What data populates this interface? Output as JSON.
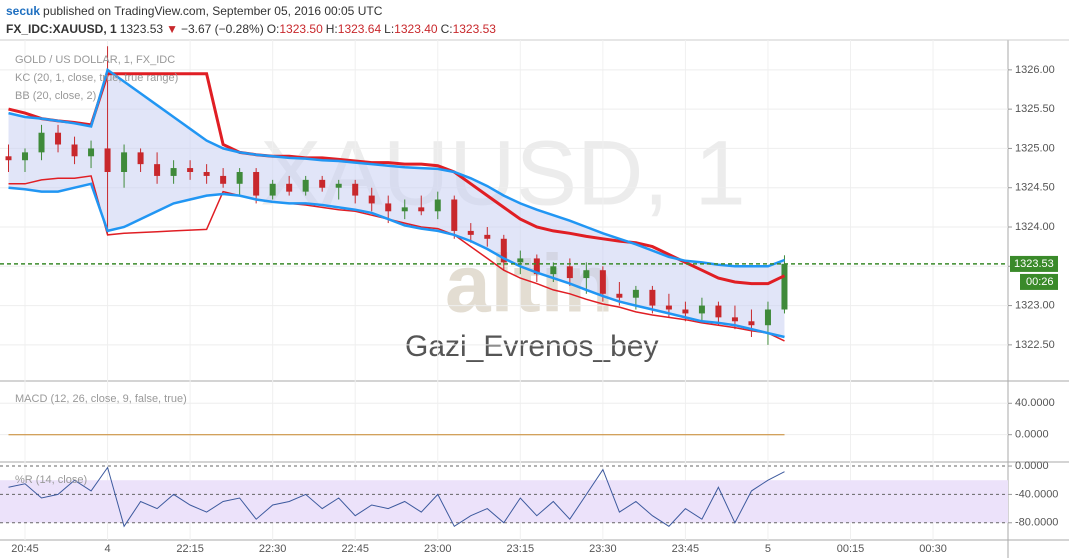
{
  "header": {
    "author": "secuk",
    "published": "published on TradingView.com, September 05, 2016 00:05 UTC",
    "symbol": "FX_IDC:XAUUSD, 1",
    "price": "1323.53",
    "arrow": "▼",
    "change": "−3.67 (−0.28%)",
    "open_label": "O:",
    "open": "1323.50",
    "high_label": "H:",
    "high": "1323.64",
    "low_label": "L:",
    "low": "1323.40",
    "close_label": "C:",
    "close": "1323.53"
  },
  "watermark": {
    "symbol": "XAUUSD, 1",
    "logo": "altin",
    "author": "Gazi_Evrenos_bey"
  },
  "chart_data": [
    {
      "type": "candlestick",
      "title": "GOLD / US DOLLAR, 1, FX_IDC",
      "categories": [
        null,
        "20:45",
        null,
        null,
        null,
        null,
        "4",
        null,
        null,
        null,
        null,
        "22:15",
        null,
        null,
        null,
        null,
        "22:30",
        null,
        null,
        null,
        null,
        "22:45",
        null,
        null,
        null,
        null,
        "23:00",
        null,
        null,
        null,
        null,
        "23:15",
        null,
        null,
        null,
        null,
        "23:30",
        null,
        null,
        null,
        null,
        "23:45",
        null,
        null,
        null,
        null,
        "5",
        null,
        null,
        null,
        null,
        "00:15",
        null,
        null,
        null,
        null,
        "00:30",
        null,
        null,
        null,
        null
      ],
      "open": [
        1324.9,
        1324.85,
        1324.95,
        1325.2,
        1325.05,
        1324.9,
        1325.0,
        1324.7,
        1324.95,
        1324.8,
        1324.65,
        1324.75,
        1324.7,
        1324.65,
        1324.55,
        1324.7,
        1324.4,
        1324.55,
        1324.45,
        1324.6,
        1324.5,
        1324.55,
        1324.4,
        1324.3,
        1324.2,
        1324.25,
        1324.2,
        1324.35,
        1323.95,
        1323.9,
        1323.85,
        1323.55,
        1323.6,
        1323.4,
        1323.5,
        1323.35,
        1323.45,
        1323.15,
        1323.1,
        1323.2,
        1323.0,
        1322.95,
        1322.9,
        1323.0,
        1322.85,
        1322.8,
        1322.75,
        1322.95,
        null,
        null,
        null,
        null,
        null,
        null,
        null,
        null,
        null,
        null,
        null,
        null,
        null
      ],
      "high": [
        1325.05,
        1325.0,
        1325.3,
        1325.3,
        1325.15,
        1325.1,
        1326.3,
        1325.05,
        1325.0,
        1324.95,
        1324.85,
        1324.85,
        1324.8,
        1324.75,
        1324.75,
        1324.75,
        1324.6,
        1324.65,
        1324.65,
        1324.65,
        1324.6,
        1324.6,
        1324.5,
        1324.4,
        1324.35,
        1324.4,
        1324.45,
        1324.4,
        1324.05,
        1324.0,
        1323.9,
        1323.7,
        1323.65,
        1323.55,
        1323.6,
        1323.55,
        1323.5,
        1323.3,
        1323.25,
        1323.25,
        1323.15,
        1323.05,
        1323.1,
        1323.05,
        1323.0,
        1322.95,
        1323.05,
        1323.64,
        null,
        null,
        null,
        null,
        null,
        null,
        null,
        null,
        null,
        null,
        null,
        null,
        null
      ],
      "low": [
        1324.7,
        1324.7,
        1324.85,
        1324.95,
        1324.8,
        1324.75,
        1323.9,
        1324.5,
        1324.7,
        1324.55,
        1324.55,
        1324.6,
        1324.55,
        1324.5,
        1324.4,
        1324.3,
        1324.35,
        1324.4,
        1324.4,
        1324.45,
        1324.35,
        1324.3,
        1324.2,
        1324.05,
        1324.1,
        1324.15,
        1324.1,
        1323.85,
        1323.8,
        1323.75,
        1323.45,
        1323.4,
        1323.3,
        1323.3,
        1323.25,
        1323.15,
        1323.05,
        1323.0,
        1322.95,
        1322.9,
        1322.85,
        1322.8,
        1322.8,
        1322.75,
        1322.7,
        1322.6,
        1322.5,
        1322.9,
        null,
        null,
        null,
        null,
        null,
        null,
        null,
        null,
        null,
        null,
        null,
        null,
        null
      ],
      "close": [
        1324.85,
        1324.95,
        1325.2,
        1325.05,
        1324.9,
        1325.0,
        1324.7,
        1324.95,
        1324.8,
        1324.65,
        1324.75,
        1324.7,
        1324.65,
        1324.55,
        1324.7,
        1324.4,
        1324.55,
        1324.45,
        1324.6,
        1324.5,
        1324.55,
        1324.4,
        1324.3,
        1324.2,
        1324.25,
        1324.2,
        1324.35,
        1323.95,
        1323.9,
        1323.85,
        1323.55,
        1323.6,
        1323.4,
        1323.5,
        1323.35,
        1323.45,
        1323.15,
        1323.1,
        1323.2,
        1323.0,
        1322.95,
        1322.9,
        1323.0,
        1322.85,
        1322.8,
        1322.75,
        1322.95,
        1323.53,
        null,
        null,
        null,
        null,
        null,
        null,
        null,
        null,
        null,
        null,
        null,
        null,
        null
      ],
      "up_color": "#3f8a3a",
      "down_color": "#c8282c",
      "indicators": [
        {
          "name": "KC (20, 1, close, true, true range)",
          "color": "#e01e24",
          "upper": [
            1325.5,
            1325.45,
            1325.38,
            1325.35,
            1325.33,
            1325.3,
            1325.95,
            1325.95,
            1325.95,
            1325.95,
            1325.95,
            1325.95,
            1325.95,
            1325.05,
            1324.95,
            1324.92,
            1324.9,
            1324.9,
            1324.88,
            1324.88,
            1324.86,
            1324.84,
            1324.82,
            1324.82,
            1324.8,
            1324.8,
            1324.78,
            1324.7,
            1324.55,
            1324.4,
            1324.25,
            1324.1,
            1324.0,
            1323.95,
            1323.92,
            1323.88,
            1323.85,
            1323.82,
            1323.8,
            1323.75,
            1323.65,
            1323.55,
            1323.45,
            1323.35,
            1323.3,
            1323.28,
            1323.28,
            1323.38,
            null,
            null,
            null,
            null,
            null,
            null,
            null,
            null,
            null,
            null,
            null,
            null,
            null
          ],
          "lower": [
            1324.55,
            1324.55,
            1324.6,
            1324.62,
            1324.62,
            1324.65,
            1323.9,
            1323.92,
            1323.93,
            1323.94,
            1323.95,
            1323.96,
            1323.97,
            1324.45,
            1324.4,
            1324.35,
            1324.32,
            1324.3,
            1324.28,
            1324.25,
            1324.22,
            1324.2,
            1324.15,
            1324.1,
            1324.05,
            1324.0,
            1323.98,
            1323.9,
            1323.75,
            1323.6,
            1323.45,
            1323.35,
            1323.28,
            1323.2,
            1323.15,
            1323.08,
            1323.02,
            1322.98,
            1322.92,
            1322.88,
            1322.85,
            1322.82,
            1322.78,
            1322.75,
            1322.72,
            1322.68,
            1322.65,
            1322.55,
            null,
            null,
            null,
            null,
            null,
            null,
            null,
            null,
            null,
            null,
            null,
            null,
            null
          ]
        },
        {
          "name": "BB (20, close, 2)",
          "color": "#2196f3",
          "upper": [
            1325.45,
            1325.4,
            1325.38,
            1325.35,
            1325.32,
            1325.28,
            1326.0,
            1325.85,
            1325.7,
            1325.55,
            1325.4,
            1325.25,
            1325.1,
            1325.0,
            1324.95,
            1324.92,
            1324.9,
            1324.88,
            1324.87,
            1324.85,
            1324.84,
            1324.82,
            1324.8,
            1324.78,
            1324.76,
            1324.75,
            1324.74,
            1324.7,
            1324.62,
            1324.52,
            1324.4,
            1324.3,
            1324.22,
            1324.15,
            1324.08,
            1324.0,
            1323.92,
            1323.85,
            1323.78,
            1323.7,
            1323.62,
            1323.57,
            1323.55,
            1323.52,
            1323.5,
            1323.5,
            1323.5,
            1323.58,
            null,
            null,
            null,
            null,
            null,
            null,
            null,
            null,
            null,
            null,
            null,
            null,
            null
          ],
          "lower": [
            1324.5,
            1324.48,
            1324.45,
            1324.45,
            1324.5,
            1324.55,
            1323.95,
            1324.0,
            1324.1,
            1324.2,
            1324.3,
            1324.35,
            1324.4,
            1324.42,
            1324.4,
            1324.35,
            1324.32,
            1324.3,
            1324.3,
            1324.28,
            1324.25,
            1324.22,
            1324.18,
            1324.1,
            1324.02,
            1323.98,
            1323.95,
            1323.9,
            1323.82,
            1323.72,
            1323.6,
            1323.5,
            1323.42,
            1323.35,
            1323.28,
            1323.2,
            1323.12,
            1323.05,
            1323.0,
            1322.95,
            1322.9,
            1322.85,
            1322.8,
            1322.78,
            1322.75,
            1322.7,
            1322.65,
            1322.6,
            null,
            null,
            null,
            null,
            null,
            null,
            null,
            null,
            null,
            null,
            null,
            null,
            null
          ],
          "fill": "#c9cff3"
        }
      ],
      "last_price": 1323.53,
      "last_color": "#3a8a2a",
      "countdown": "00:26",
      "ylim": [
        1322.04,
        1326.38
      ],
      "yticks": [
        {
          "value": 1322.5,
          "label": "1322.50"
        },
        {
          "value": 1323,
          "label": "1323.00"
        },
        {
          "value": 1323.5,
          "label": "1323.50"
        },
        {
          "value": 1324,
          "label": "1324.00"
        },
        {
          "value": 1324.5,
          "label": "1324.50"
        },
        {
          "value": 1325,
          "label": "1325.00"
        },
        {
          "value": 1325.5,
          "label": "1325.50"
        },
        {
          "value": 1326,
          "label": "1326.00"
        }
      ],
      "grid": true
    },
    {
      "type": "line",
      "title": "MACD (12, 26, close, 9, false, true)",
      "series": [
        {
          "color": "#c8862a",
          "values": [
            0,
            0,
            0,
            0,
            0,
            0,
            0,
            0,
            0,
            0,
            0,
            0,
            0,
            0,
            0,
            0,
            0,
            0,
            0,
            0,
            0,
            0,
            0,
            0,
            0,
            0,
            0,
            0,
            0,
            0,
            0,
            0,
            0,
            0,
            0,
            0,
            0,
            0,
            0,
            0,
            0,
            0,
            0,
            0,
            0,
            0,
            0,
            0
          ]
        }
      ],
      "ylim": [
        -34.8,
        68.4
      ],
      "yticks": [
        {
          "value": 0,
          "label": "0.0000"
        },
        {
          "value": 40,
          "label": "40.0000"
        }
      ],
      "grid": true
    },
    {
      "type": "line",
      "title": "%R (14, close)",
      "series": [
        {
          "color": "#3d5a9e",
          "values": [
            -30,
            -25,
            -45,
            -40,
            -20,
            -35,
            -2,
            -85,
            -50,
            -60,
            -40,
            -55,
            -65,
            -50,
            -45,
            -75,
            -55,
            -50,
            -40,
            -60,
            -45,
            -70,
            -55,
            -60,
            -50,
            -65,
            -40,
            -85,
            -70,
            -60,
            -80,
            -45,
            -70,
            -50,
            -75,
            -40,
            -5,
            -65,
            -50,
            -70,
            -85,
            -60,
            -75,
            -30,
            -80,
            -35,
            -20,
            -8
          ]
        }
      ],
      "band": [
        -20,
        -80
      ],
      "band_color": "#ece2fa",
      "ylim": [
        -104.3,
        5.7
      ],
      "yticks": [
        {
          "value": 0,
          "label": "0.0000"
        },
        {
          "value": -40,
          "label": "-40.0000"
        },
        {
          "value": -80,
          "label": "-80.0000"
        }
      ],
      "grid": true
    }
  ]
}
